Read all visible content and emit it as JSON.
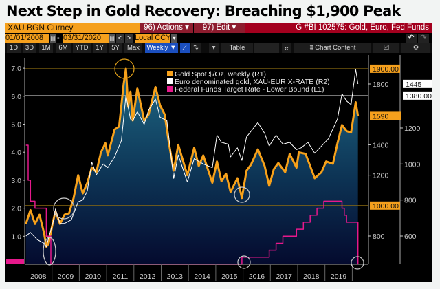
{
  "title": "Next Step in Gold Recovery: Breaching $1,900 Peak",
  "toolbar": {
    "ticker": "XAU BGN Curncy",
    "actions": "96) Actions ▾",
    "edit": "97) Edit ▾",
    "chart_id": "G #BI 102575: Gold, Euro, Fed Funds",
    "start_date": "01/01/2008",
    "date_sep": "-",
    "end_date": "03/31/2020",
    "prev": "<",
    "next": ">",
    "currency": "Local CCY",
    "currency_caret": "▾",
    "undo": "↶",
    "redo": "↷",
    "periods": [
      "1D",
      "3D",
      "1M",
      "6M",
      "YTD",
      "1Y",
      "5Y",
      "Max"
    ],
    "frequency": "Weekly ▼",
    "more_caret": "▾",
    "table": "Table",
    "collapse": "«",
    "chart_content": "Chart Content",
    "icons": [
      "calendar-icon",
      "line-chart-icon",
      "bar-chart-icon",
      "check-edit-icon",
      "gear-icon"
    ]
  },
  "colors": {
    "gold": "#f7a11a",
    "euro": "#ffffff",
    "fed": "#e6198c",
    "ticker_bg": "#f5a01d",
    "actions_bg": "#8d1c2e",
    "title_bar_bg": "#a3001e",
    "weekly_bg": "#1b4fbf"
  },
  "chart_data": {
    "type": "line",
    "x_range": [
      "2008-01",
      "2020-03"
    ],
    "x_ticks": [
      "2008",
      "2009",
      "2010",
      "2011",
      "2012",
      "2013",
      "2014",
      "2015",
      "2016",
      "2017",
      "2018",
      "2019"
    ],
    "legend_position": "top-center",
    "axes": {
      "L1": {
        "ticks": [
          "1.0",
          "2.0",
          "3.0",
          "4.0",
          "5.0",
          "6.0",
          "7.0"
        ],
        "range": [
          0,
          7.4
        ]
      },
      "R1": {
        "ticks": [
          "800",
          "1200",
          "1400",
          "1800"
        ],
        "range": [
          620,
          1960
        ]
      },
      "R2": {
        "ticks": [
          "600",
          "800",
          "1000",
          "1200"
        ],
        "range": [
          440,
          1560
        ]
      }
    },
    "reference_lines": [
      {
        "axis": "R1",
        "value": 1900,
        "label": "1900.00"
      },
      {
        "axis": "R1",
        "value": 1000,
        "label": "1000.00"
      },
      {
        "axis": "R2",
        "value": 1380,
        "label": "1380.00"
      }
    ],
    "last_value_labels": [
      {
        "axis": "R1",
        "value": 1590,
        "label": "1590"
      },
      {
        "axis": "R2",
        "value": 1445,
        "label": "1445"
      }
    ],
    "series": [
      {
        "name": "Gold Spot $/Oz, weekly (R1)",
        "axis": "R1",
        "color": "#f7a11a",
        "area": true,
        "points": [
          [
            "2008-01",
            880
          ],
          [
            "2008-03",
            970
          ],
          [
            "2008-05",
            880
          ],
          [
            "2008-07",
            940
          ],
          [
            "2008-09",
            820
          ],
          [
            "2008-10",
            730
          ],
          [
            "2008-11",
            750
          ],
          [
            "2009-01",
            900
          ],
          [
            "2009-02",
            960
          ],
          [
            "2009-04",
            880
          ],
          [
            "2009-06",
            940
          ],
          [
            "2009-08",
            950
          ],
          [
            "2009-10",
            1050
          ],
          [
            "2009-12",
            1200
          ],
          [
            "2010-02",
            1080
          ],
          [
            "2010-04",
            1150
          ],
          [
            "2010-06",
            1250
          ],
          [
            "2010-08",
            1220
          ],
          [
            "2010-10",
            1350
          ],
          [
            "2010-12",
            1410
          ],
          [
            "2011-01",
            1330
          ],
          [
            "2011-04",
            1500
          ],
          [
            "2011-06",
            1520
          ],
          [
            "2011-08",
            1800
          ],
          [
            "2011-09",
            1900
          ],
          [
            "2011-10",
            1650
          ],
          [
            "2011-11",
            1750
          ],
          [
            "2011-12",
            1560
          ],
          [
            "2012-02",
            1770
          ],
          [
            "2012-05",
            1560
          ],
          [
            "2012-07",
            1600
          ],
          [
            "2012-10",
            1780
          ],
          [
            "2012-12",
            1660
          ],
          [
            "2013-02",
            1600
          ],
          [
            "2013-04",
            1400
          ],
          [
            "2013-06",
            1230
          ],
          [
            "2013-08",
            1400
          ],
          [
            "2013-10",
            1300
          ],
          [
            "2013-12",
            1200
          ],
          [
            "2014-03",
            1380
          ],
          [
            "2014-05",
            1260
          ],
          [
            "2014-07",
            1330
          ],
          [
            "2014-11",
            1150
          ],
          [
            "2015-01",
            1290
          ],
          [
            "2015-03",
            1160
          ],
          [
            "2015-05",
            1210
          ],
          [
            "2015-07",
            1090
          ],
          [
            "2015-10",
            1180
          ],
          [
            "2015-12",
            1050
          ],
          [
            "2016-02",
            1230
          ],
          [
            "2016-04",
            1270
          ],
          [
            "2016-07",
            1370
          ],
          [
            "2016-10",
            1260
          ],
          [
            "2016-12",
            1130
          ],
          [
            "2017-02",
            1240
          ],
          [
            "2017-04",
            1280
          ],
          [
            "2017-07",
            1220
          ],
          [
            "2017-09",
            1340
          ],
          [
            "2017-12",
            1250
          ],
          [
            "2018-01",
            1350
          ],
          [
            "2018-04",
            1340
          ],
          [
            "2018-08",
            1180
          ],
          [
            "2018-11",
            1220
          ],
          [
            "2019-01",
            1290
          ],
          [
            "2019-04",
            1275
          ],
          [
            "2019-06",
            1410
          ],
          [
            "2019-08",
            1530
          ],
          [
            "2019-10",
            1490
          ],
          [
            "2019-12",
            1480
          ],
          [
            "2020-01",
            1580
          ],
          [
            "2020-02",
            1680
          ],
          [
            "2020-03",
            1590
          ]
        ]
      },
      {
        "name": "Euro denominated gold, XAU-EUR X-RATE (R2)",
        "axis": "R2",
        "color": "#ffffff",
        "points": [
          [
            "2008-01",
            600
          ],
          [
            "2008-03",
            620
          ],
          [
            "2008-06",
            580
          ],
          [
            "2008-09",
            560
          ],
          [
            "2008-10",
            540
          ],
          [
            "2008-11",
            590
          ],
          [
            "2009-01",
            680
          ],
          [
            "2009-02",
            750
          ],
          [
            "2009-04",
            670
          ],
          [
            "2009-06",
            670
          ],
          [
            "2009-09",
            690
          ],
          [
            "2009-12",
            790
          ],
          [
            "2010-02",
            800
          ],
          [
            "2010-04",
            850
          ],
          [
            "2010-06",
            1010
          ],
          [
            "2010-08",
            940
          ],
          [
            "2010-11",
            1000
          ],
          [
            "2011-01",
            980
          ],
          [
            "2011-04",
            1040
          ],
          [
            "2011-07",
            1130
          ],
          [
            "2011-09",
            1380
          ],
          [
            "2011-11",
            1250
          ],
          [
            "2011-12",
            1240
          ],
          [
            "2012-02",
            1290
          ],
          [
            "2012-05",
            1220
          ],
          [
            "2012-07",
            1300
          ],
          [
            "2012-10",
            1360
          ],
          [
            "2012-12",
            1260
          ],
          [
            "2013-03",
            1240
          ],
          [
            "2013-06",
            920
          ],
          [
            "2013-08",
            1050
          ],
          [
            "2013-12",
            900
          ],
          [
            "2014-03",
            1030
          ],
          [
            "2014-07",
            1000
          ],
          [
            "2014-11",
            980
          ],
          [
            "2015-01",
            1160
          ],
          [
            "2015-03",
            1120
          ],
          [
            "2015-06",
            1110
          ],
          [
            "2015-07",
            1040
          ],
          [
            "2015-10",
            1090
          ],
          [
            "2015-12",
            1020
          ],
          [
            "2016-02",
            1150
          ],
          [
            "2016-07",
            1230
          ],
          [
            "2016-10",
            1170
          ],
          [
            "2016-12",
            1100
          ],
          [
            "2017-03",
            1160
          ],
          [
            "2017-06",
            1110
          ],
          [
            "2017-09",
            1120
          ],
          [
            "2017-12",
            1080
          ],
          [
            "2018-02",
            1090
          ],
          [
            "2018-05",
            1120
          ],
          [
            "2018-08",
            1060
          ],
          [
            "2018-11",
            1100
          ],
          [
            "2019-02",
            1140
          ],
          [
            "2019-06",
            1250
          ],
          [
            "2019-08",
            1390
          ],
          [
            "2019-10",
            1350
          ],
          [
            "2019-12",
            1330
          ],
          [
            "2020-01",
            1430
          ],
          [
            "2020-02",
            1525
          ],
          [
            "2020-03",
            1445
          ]
        ]
      },
      {
        "name": "Federal Funds Target Rate - Lower Bound (L1)",
        "axis": "L1",
        "color": "#e6198c",
        "step": true,
        "points": [
          [
            "2008-01",
            4.25
          ],
          [
            "2008-02",
            3.0
          ],
          [
            "2008-03",
            2.25
          ],
          [
            "2008-05",
            2.0
          ],
          [
            "2008-10",
            1.0
          ],
          [
            "2008-12",
            0.0
          ],
          [
            "2015-12",
            0.25
          ],
          [
            "2016-12",
            0.5
          ],
          [
            "2017-03",
            0.75
          ],
          [
            "2017-06",
            1.0
          ],
          [
            "2017-12",
            1.25
          ],
          [
            "2018-03",
            1.5
          ],
          [
            "2018-06",
            1.75
          ],
          [
            "2018-09",
            2.0
          ],
          [
            "2018-12",
            2.25
          ],
          [
            "2019-08",
            2.0
          ],
          [
            "2019-09",
            1.75
          ],
          [
            "2019-10",
            1.5
          ],
          [
            "2020-03",
            1.0
          ],
          [
            "2020-03",
            0.0
          ]
        ]
      }
    ]
  }
}
